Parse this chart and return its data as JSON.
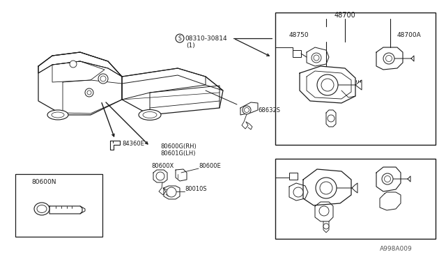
{
  "bg_color": "#ffffff",
  "fig_width": 6.4,
  "fig_height": 3.72,
  "dpi": 100,
  "text_color": "#1a1a1a",
  "line_color": "#1a1a1a",
  "labels": {
    "S_label": "08310-30814",
    "S_sub": "(1)",
    "label_68632S": "68632S",
    "label_84360E": "84360E",
    "label_80600G_RH": "80600G(RH)",
    "label_80601G_LH": "80601G(LH)",
    "label_80600X": "80600X",
    "label_80600E": "80600E",
    "label_80010S": "80010S",
    "label_80600N": "80600N",
    "label_48700": "48700",
    "label_48750": "48750",
    "label_48700A": "48700A",
    "watermark": "A998A009"
  }
}
